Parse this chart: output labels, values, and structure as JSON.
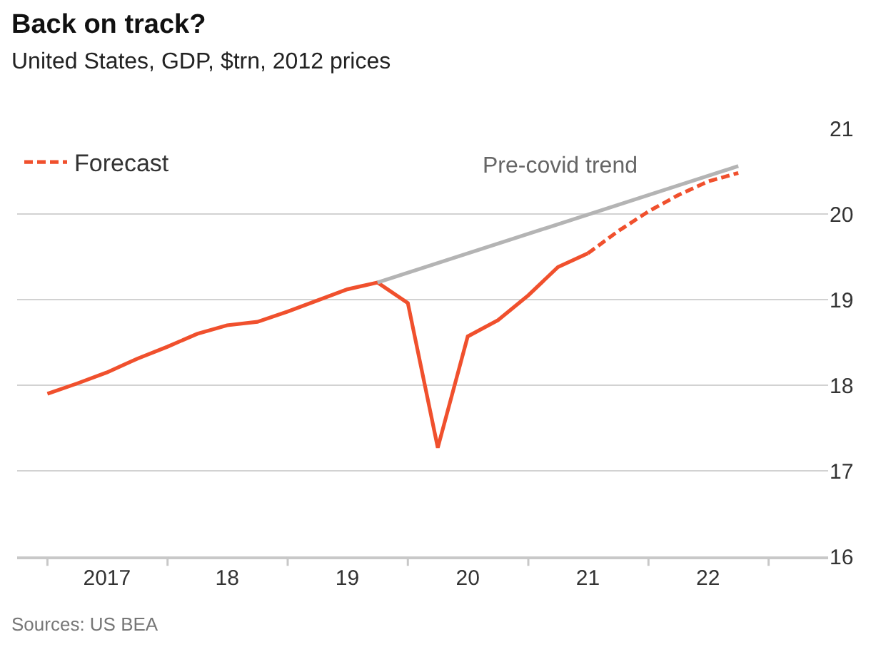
{
  "chart_data": {
    "type": "line",
    "title": "Back on track?",
    "subtitle": "United States, GDP, $trn, 2012 prices",
    "series": [
      {
        "color": "#f0502d",
        "line_style": "solid",
        "x": [
          "2017-01",
          "2017-04",
          "2017-07",
          "2017-10",
          "2018-01",
          "2018-04",
          "2018-07",
          "2018-10",
          "2019-01",
          "2019-04",
          "2019-07",
          "2019-10",
          "2020-01",
          "2020-04",
          "2020-07",
          "2020-10",
          "2021-01",
          "2021-04",
          "2021-07"
        ],
        "values": [
          17.9,
          18.02,
          18.15,
          18.31,
          18.45,
          18.6,
          18.7,
          18.74,
          18.86,
          18.99,
          19.12,
          19.2,
          18.96,
          17.27,
          18.57,
          18.76,
          19.05,
          19.38,
          19.54
        ]
      },
      {
        "name": "Forecast",
        "color": "#f0502d",
        "line_style": "dashed",
        "x": [
          "2021-07",
          "2021-10",
          "2022-01",
          "2022-04",
          "2022-07",
          "2022-10"
        ],
        "values": [
          19.54,
          19.8,
          20.03,
          20.22,
          20.38,
          20.48
        ]
      },
      {
        "color": "#b4b4b4",
        "line_style": "solid",
        "x": [
          "2019-10",
          "2022-10"
        ],
        "values": [
          19.2,
          20.56
        ]
      }
    ],
    "annotations": [
      "Pre-covid trend",
      "Sources: US BEA"
    ],
    "xlim": [
      "2016-10",
      "2023-07"
    ],
    "xticks": [
      {
        "value": "2017-01",
        "label": null
      },
      {
        "value": "2017-07",
        "label": "2017"
      },
      {
        "value": "2018-01",
        "label": null
      },
      {
        "value": "2018-07",
        "label": "18"
      },
      {
        "value": "2019-01",
        "label": null
      },
      {
        "value": "2019-07",
        "label": "19"
      },
      {
        "value": "2020-01",
        "label": null
      },
      {
        "value": "2020-07",
        "label": "20"
      },
      {
        "value": "2021-01",
        "label": null
      },
      {
        "value": "2021-07",
        "label": "21"
      },
      {
        "value": "2022-01",
        "label": null
      },
      {
        "value": "2022-07",
        "label": "22"
      },
      {
        "value": "2023-01",
        "label": null
      }
    ],
    "ylim": [
      16,
      21
    ],
    "yticks": [
      16,
      17,
      18,
      19,
      20,
      21
    ],
    "grid": "y",
    "legend": "top left",
    "marker": "none"
  }
}
